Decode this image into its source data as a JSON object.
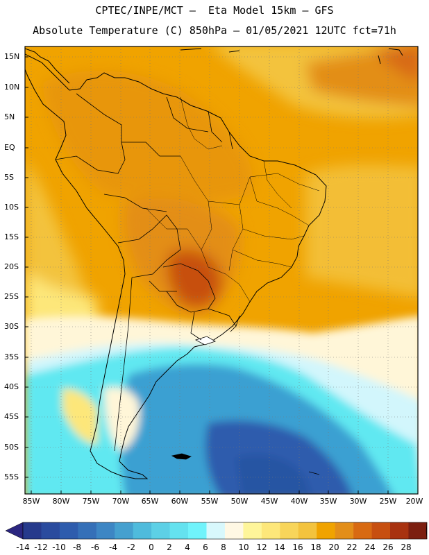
{
  "header": {
    "line1": "CPTEC/INPE/MCT –  Eta Model 15km – GFS",
    "line2": "Absolute Temperature (C) 850hPa – 01/05/2021 12UTC fct=71h"
  },
  "map": {
    "lat_labels": [
      "15N",
      "10N",
      "5N",
      "EQ",
      "5S",
      "10S",
      "15S",
      "20S",
      "25S",
      "30S",
      "35S",
      "40S",
      "45S",
      "50S",
      "55S"
    ],
    "lon_labels": [
      "85W",
      "80W",
      "75W",
      "70W",
      "65W",
      "60W",
      "55W",
      "50W",
      "45W",
      "40W",
      "35W",
      "30W",
      "25W",
      "20W"
    ],
    "colors": {
      "warm_orange": "#f0a300",
      "orange": "#e38e19",
      "deep_orange": "#d45d10",
      "gold": "#f3c33e",
      "yellow": "#fde77a",
      "cream": "#fff6d8",
      "pale_cyan": "#d2f6fc",
      "cyan": "#61e8f1",
      "blue": "#3aa0d2",
      "deep_blue": "#2655a3"
    }
  },
  "colorbar": {
    "labels": [
      "-14",
      "-12",
      "-10",
      "-8",
      "-6",
      "-4",
      "-2",
      "0",
      "2",
      "4",
      "6",
      "8",
      "10",
      "12",
      "14",
      "16",
      "18",
      "20",
      "22",
      "24",
      "26",
      "28"
    ],
    "colors": [
      "#263a8c",
      "#2a4b9e",
      "#2e5cad",
      "#3570b8",
      "#3d86c4",
      "#45a0cf",
      "#4fbbdc",
      "#5dd0e6",
      "#64e2ef",
      "#70f3fb",
      "#d8f8fc",
      "#fff8e4",
      "#fef59a",
      "#fde77a",
      "#f8d55a",
      "#f3c33e",
      "#f0a300",
      "#e38e19",
      "#d86a12",
      "#c74f10",
      "#a83210",
      "#7c1f10"
    ],
    "low_arrow_color": "#2b2680",
    "high_arrow_color": "#6e0a24"
  }
}
